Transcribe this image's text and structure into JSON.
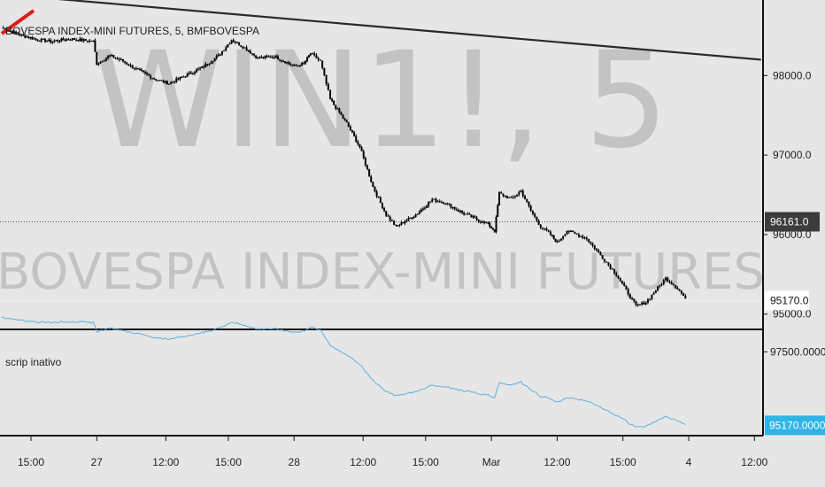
{
  "chart_data": [
    {
      "type": "candlestick",
      "title": "BOVESPA INDEX-MINI FUTURES, 5, BMFBOVESPA",
      "watermark_symbol": "WIN1!, 5",
      "watermark_name": "BOVESPA INDEX-MINI FUTURES",
      "ylim": [
        94830,
        98950
      ],
      "y_ticks": [
        "98000.0",
        "97000.0",
        "96000.0",
        "95000.0"
      ],
      "x_ticks": [
        "15:00",
        "27",
        "12:00",
        "15:00",
        "28",
        "12:00",
        "15:00",
        "Mar",
        "12:00",
        "15:00",
        "4",
        "12:00"
      ],
      "x_tick_positions": [
        0.0,
        1.0,
        2.05,
        3.0,
        4.0,
        5.05,
        6.0,
        7.0,
        8.0,
        9.0,
        10.0,
        11.0
      ],
      "price_labels": [
        {
          "text": "96161.0",
          "value": 96161,
          "style": "dark"
        },
        {
          "text": "95170.0",
          "value": 95170,
          "style": "light"
        }
      ],
      "trendline": {
        "from": {
          "x": -0.4,
          "y": 99020
        },
        "to": {
          "x": 11.1,
          "y": 98200
        }
      },
      "series_anchors": [
        [
          -0.45,
          98600
        ],
        [
          -0.2,
          98520
        ],
        [
          0.1,
          98450
        ],
        [
          0.3,
          98430
        ],
        [
          0.6,
          98460
        ],
        [
          0.95,
          98430
        ],
        [
          1.0,
          98150
        ],
        [
          1.2,
          98250
        ],
        [
          1.4,
          98180
        ],
        [
          1.6,
          98080
        ],
        [
          1.9,
          97950
        ],
        [
          2.1,
          97900
        ],
        [
          2.35,
          98000
        ],
        [
          2.6,
          98100
        ],
        [
          2.85,
          98250
        ],
        [
          3.05,
          98450
        ],
        [
          3.25,
          98350
        ],
        [
          3.45,
          98220
        ],
        [
          3.7,
          98240
        ],
        [
          4.0,
          98120
        ],
        [
          4.15,
          98150
        ],
        [
          4.25,
          98280
        ],
        [
          4.4,
          98180
        ],
        [
          4.55,
          97700
        ],
        [
          4.8,
          97400
        ],
        [
          5.0,
          97100
        ],
        [
          5.2,
          96600
        ],
        [
          5.4,
          96250
        ],
        [
          5.55,
          96100
        ],
        [
          5.85,
          96250
        ],
        [
          6.1,
          96440
        ],
        [
          6.3,
          96400
        ],
        [
          6.5,
          96300
        ],
        [
          6.75,
          96200
        ],
        [
          6.95,
          96130
        ],
        [
          7.05,
          96050
        ],
        [
          7.12,
          96520
        ],
        [
          7.3,
          96450
        ],
        [
          7.45,
          96550
        ],
        [
          7.6,
          96300
        ],
        [
          7.75,
          96100
        ],
        [
          7.9,
          96000
        ],
        [
          8.0,
          95900
        ],
        [
          8.15,
          96050
        ],
        [
          8.3,
          96000
        ],
        [
          8.45,
          95950
        ],
        [
          8.6,
          95800
        ],
        [
          8.75,
          95650
        ],
        [
          8.9,
          95500
        ],
        [
          9.05,
          95300
        ],
        [
          9.2,
          95100
        ],
        [
          9.35,
          95150
        ],
        [
          9.5,
          95300
        ],
        [
          9.65,
          95450
        ],
        [
          9.8,
          95350
        ],
        [
          9.95,
          95200
        ]
      ]
    },
    {
      "type": "line",
      "label": "scrip inativo",
      "ylim": [
        94900,
        98100
      ],
      "y_ticks": [
        "97500.0000"
      ],
      "price_label": {
        "text": "95170.0000",
        "value": 95170
      },
      "line_color": "#5fb0de"
    }
  ],
  "colors": {
    "background": "#e6e6e6",
    "candle": "#000000",
    "trendline": "#2a2a2a",
    "marker": "#e01a1a",
    "indicator": "#5fb0de",
    "dark_tag": "#3c3c3c",
    "light_tag": "#ffffff",
    "ind_tag": "#2fb4e6"
  }
}
